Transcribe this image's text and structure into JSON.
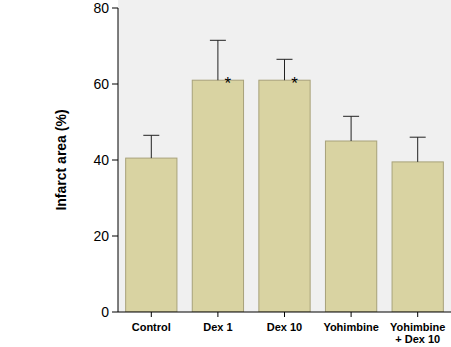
{
  "chart_data": {
    "type": "bar",
    "y_label": "Infarct area (%)",
    "categories": [
      "Control",
      "Dex 1",
      "Dex 10",
      "Yohimbine",
      "Yohimbine + Dex 10"
    ],
    "values": [
      40.5,
      61,
      61,
      45,
      39.5
    ],
    "errors": [
      6,
      10.5,
      5.5,
      6.5,
      6.5
    ],
    "color": "#d9d3a2",
    "ylim": [
      0,
      80
    ],
    "yticks": [
      0,
      20,
      40,
      60,
      80
    ],
    "grid": false,
    "annotations": [
      {
        "text": "*",
        "category": "Dex 1"
      },
      {
        "text": "*",
        "category": "Dex 10"
      }
    ]
  }
}
